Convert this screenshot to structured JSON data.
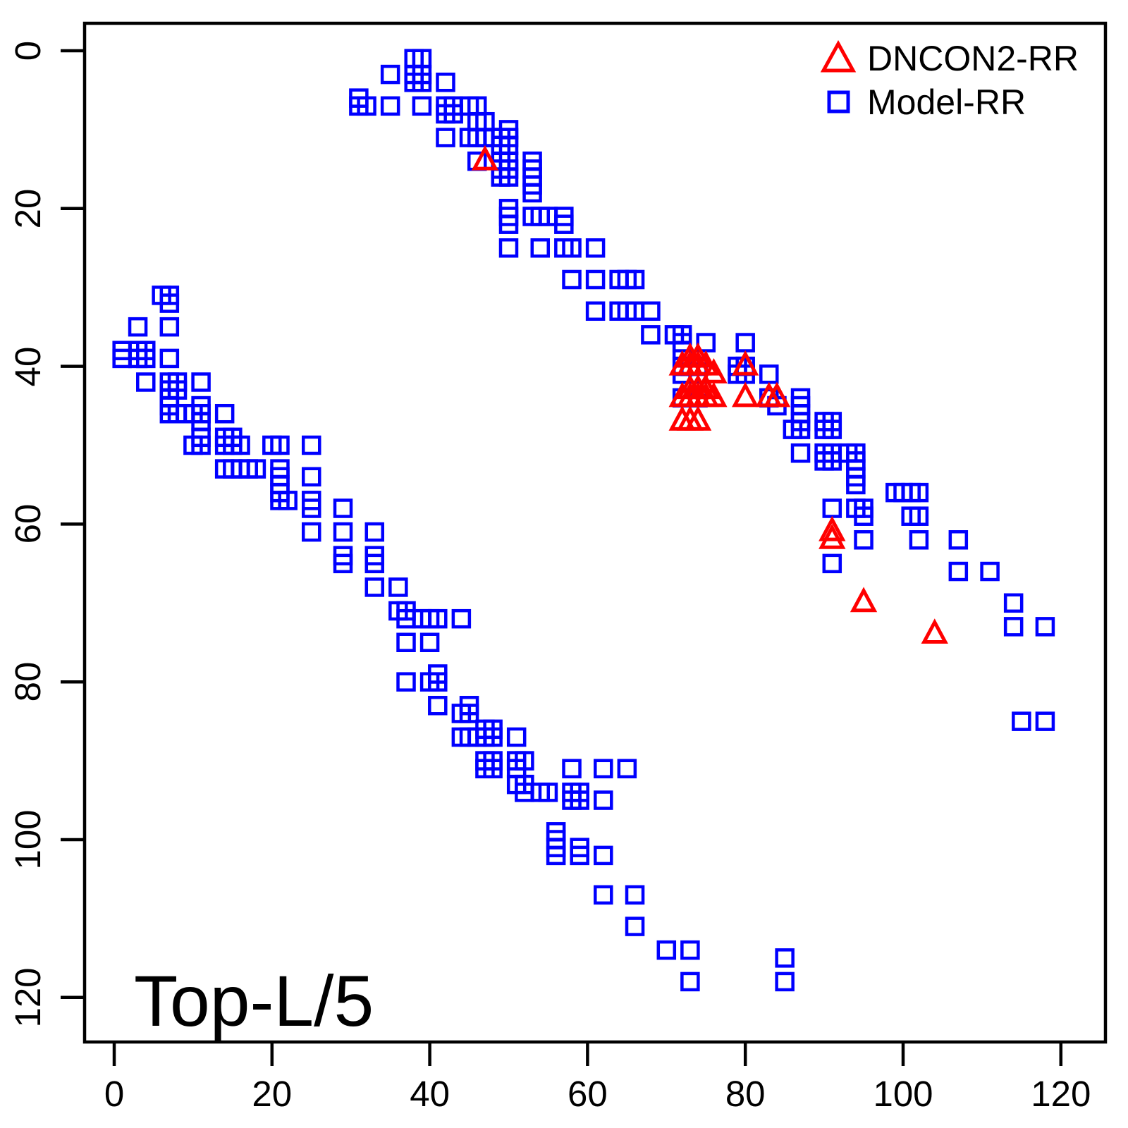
{
  "title": "Top-L/5",
  "legend": {
    "items": [
      {
        "label": "DNCON2-RR",
        "marker": "triangle",
        "color": "#FF0000"
      },
      {
        "label": "Model-RR",
        "marker": "square",
        "color": "#0000FF"
      }
    ]
  },
  "colors": {
    "dncon2": "#FF0000",
    "model": "#0000FF",
    "axis": "#000000",
    "background": "#FFFFFF"
  },
  "chart_data": {
    "type": "scatter",
    "title": "Top-L/5",
    "xlabel": "",
    "ylabel": "",
    "x_ticks": [
      0,
      20,
      40,
      60,
      80,
      100,
      120
    ],
    "y_ticks": [
      0,
      20,
      40,
      60,
      80,
      100,
      120
    ],
    "xlim": [
      -3.8,
      125.6
    ],
    "ylim": [
      -3.5,
      125.7
    ],
    "y_axis_inverted": true,
    "grid": false,
    "legend_position": "top-right",
    "series": [
      {
        "name": "Model-RR",
        "marker": "square",
        "color": "#0000FF",
        "points": [
          [
            38,
            1
          ],
          [
            39,
            1
          ],
          [
            35,
            3
          ],
          [
            38,
            3
          ],
          [
            39,
            3
          ],
          [
            38,
            4
          ],
          [
            39,
            4
          ],
          [
            42,
            4
          ],
          [
            31,
            6
          ],
          [
            31,
            7
          ],
          [
            32,
            7
          ],
          [
            35,
            7
          ],
          [
            39,
            7
          ],
          [
            42,
            7
          ],
          [
            43,
            7
          ],
          [
            45,
            7
          ],
          [
            46,
            7
          ],
          [
            42,
            8
          ],
          [
            43,
            8
          ],
          [
            46,
            9
          ],
          [
            47,
            9
          ],
          [
            50,
            10
          ],
          [
            42,
            11
          ],
          [
            45,
            11
          ],
          [
            46,
            11
          ],
          [
            47,
            11
          ],
          [
            48,
            11
          ],
          [
            49,
            11
          ],
          [
            50,
            11
          ],
          [
            49,
            12
          ],
          [
            50,
            12
          ],
          [
            46,
            14
          ],
          [
            49,
            14
          ],
          [
            50,
            14
          ],
          [
            49,
            15
          ],
          [
            50,
            15
          ],
          [
            49,
            16
          ],
          [
            50,
            16
          ],
          [
            53,
            14
          ],
          [
            53,
            15
          ],
          [
            53,
            16
          ],
          [
            53,
            17
          ],
          [
            53,
            18
          ],
          [
            50,
            20
          ],
          [
            50,
            21
          ],
          [
            50,
            22
          ],
          [
            53,
            21
          ],
          [
            54,
            21
          ],
          [
            55,
            21
          ],
          [
            57,
            21
          ],
          [
            57,
            22
          ],
          [
            50,
            25
          ],
          [
            54,
            25
          ],
          [
            57,
            25
          ],
          [
            58,
            25
          ],
          [
            61,
            25
          ],
          [
            58,
            29
          ],
          [
            61,
            29
          ],
          [
            64,
            29
          ],
          [
            65,
            29
          ],
          [
            66,
            29
          ],
          [
            61,
            33
          ],
          [
            64,
            33
          ],
          [
            65,
            33
          ],
          [
            66,
            33
          ],
          [
            68,
            33
          ],
          [
            68,
            36
          ],
          [
            71,
            36
          ],
          [
            72,
            36
          ],
          [
            72,
            37
          ],
          [
            72,
            38
          ],
          [
            75,
            37
          ],
          [
            80,
            37
          ],
          [
            72,
            40
          ],
          [
            73,
            40
          ],
          [
            74,
            40
          ],
          [
            72,
            41
          ],
          [
            74,
            41
          ],
          [
            79,
            40
          ],
          [
            80,
            40
          ],
          [
            79,
            41
          ],
          [
            80,
            41
          ],
          [
            83,
            41
          ],
          [
            72,
            44
          ],
          [
            74,
            44
          ],
          [
            83,
            44
          ],
          [
            84,
            45
          ],
          [
            87,
            44
          ],
          [
            87,
            45
          ],
          [
            87,
            46
          ],
          [
            87,
            47
          ],
          [
            87,
            48
          ],
          [
            86,
            48
          ],
          [
            90,
            47
          ],
          [
            91,
            47
          ],
          [
            90,
            48
          ],
          [
            91,
            48
          ],
          [
            87,
            51
          ],
          [
            90,
            51
          ],
          [
            91,
            51
          ],
          [
            90,
            52
          ],
          [
            91,
            52
          ],
          [
            93,
            51
          ],
          [
            94,
            51
          ],
          [
            94,
            52
          ],
          [
            94,
            53
          ],
          [
            94,
            54
          ],
          [
            94,
            55
          ],
          [
            99,
            56
          ],
          [
            100,
            56
          ],
          [
            101,
            56
          ],
          [
            102,
            56
          ],
          [
            91,
            58
          ],
          [
            94,
            58
          ],
          [
            95,
            58
          ],
          [
            95,
            59
          ],
          [
            101,
            59
          ],
          [
            102,
            59
          ],
          [
            91,
            65
          ],
          [
            95,
            62
          ],
          [
            102,
            62
          ],
          [
            107,
            62
          ],
          [
            107,
            66
          ],
          [
            111,
            66
          ],
          [
            114,
            70
          ],
          [
            114,
            73
          ],
          [
            118,
            73
          ],
          [
            115,
            85
          ],
          [
            118,
            85
          ],
          [
            85,
            115
          ],
          [
            85,
            118
          ],
          [
            6,
            31
          ],
          [
            7,
            31
          ],
          [
            7,
            32
          ],
          [
            3,
            35
          ],
          [
            7,
            35
          ],
          [
            1,
            38
          ],
          [
            1,
            39
          ],
          [
            3,
            38
          ],
          [
            3,
            39
          ],
          [
            4,
            38
          ],
          [
            4,
            39
          ],
          [
            7,
            39
          ],
          [
            4,
            42
          ],
          [
            7,
            42
          ],
          [
            8,
            42
          ],
          [
            7,
            43
          ],
          [
            8,
            43
          ],
          [
            7,
            44
          ],
          [
            7,
            45
          ],
          [
            7,
            46
          ],
          [
            11,
            42
          ],
          [
            8,
            46
          ],
          [
            9,
            46
          ],
          [
            10,
            46
          ],
          [
            11,
            45
          ],
          [
            11,
            46
          ],
          [
            11,
            47
          ],
          [
            14,
            46
          ],
          [
            11,
            49
          ],
          [
            10,
            50
          ],
          [
            11,
            50
          ],
          [
            14,
            49
          ],
          [
            15,
            49
          ],
          [
            14,
            50
          ],
          [
            15,
            50
          ],
          [
            16,
            50
          ],
          [
            20,
            50
          ],
          [
            21,
            50
          ],
          [
            25,
            50
          ],
          [
            14,
            53
          ],
          [
            15,
            53
          ],
          [
            16,
            53
          ],
          [
            17,
            53
          ],
          [
            18,
            53
          ],
          [
            21,
            53
          ],
          [
            21,
            54
          ],
          [
            21,
            55
          ],
          [
            21,
            56
          ],
          [
            21,
            57
          ],
          [
            22,
            57
          ],
          [
            25,
            54
          ],
          [
            25,
            57
          ],
          [
            25,
            58
          ],
          [
            29,
            58
          ],
          [
            25,
            61
          ],
          [
            29,
            61
          ],
          [
            33,
            61
          ],
          [
            29,
            64
          ],
          [
            29,
            65
          ],
          [
            33,
            64
          ],
          [
            33,
            65
          ],
          [
            33,
            68
          ],
          [
            36,
            68
          ],
          [
            36,
            71
          ],
          [
            37,
            71
          ],
          [
            37,
            72
          ],
          [
            39,
            72
          ],
          [
            40,
            72
          ],
          [
            41,
            72
          ],
          [
            44,
            72
          ],
          [
            37,
            75
          ],
          [
            40,
            75
          ],
          [
            37,
            80
          ],
          [
            41,
            79
          ],
          [
            40,
            80
          ],
          [
            41,
            80
          ],
          [
            41,
            83
          ],
          [
            45,
            83
          ],
          [
            44,
            84
          ],
          [
            45,
            84
          ],
          [
            44,
            87
          ],
          [
            45,
            87
          ],
          [
            46,
            87
          ],
          [
            47,
            86
          ],
          [
            48,
            86
          ],
          [
            47,
            87
          ],
          [
            48,
            87
          ],
          [
            51,
            87
          ],
          [
            47,
            90
          ],
          [
            48,
            90
          ],
          [
            47,
            91
          ],
          [
            48,
            91
          ],
          [
            51,
            90
          ],
          [
            52,
            90
          ],
          [
            51,
            91
          ],
          [
            51,
            93
          ],
          [
            52,
            93
          ],
          [
            52,
            94
          ],
          [
            54,
            94
          ],
          [
            55,
            94
          ],
          [
            58,
            91
          ],
          [
            62,
            91
          ],
          [
            65,
            91
          ],
          [
            58,
            94
          ],
          [
            59,
            94
          ],
          [
            58,
            95
          ],
          [
            59,
            95
          ],
          [
            62,
            95
          ],
          [
            56,
            99
          ],
          [
            56,
            100
          ],
          [
            56,
            101
          ],
          [
            56,
            102
          ],
          [
            59,
            101
          ],
          [
            59,
            102
          ],
          [
            62,
            102
          ],
          [
            62,
            107
          ],
          [
            66,
            107
          ],
          [
            66,
            111
          ],
          [
            70,
            114
          ],
          [
            73,
            114
          ],
          [
            73,
            118
          ]
        ]
      },
      {
        "name": "DNCON2-RR",
        "marker": "triangle",
        "color": "#FF0000",
        "points": [
          [
            47,
            14
          ],
          [
            73,
            39
          ],
          [
            74,
            39
          ],
          [
            72,
            40
          ],
          [
            73,
            40
          ],
          [
            74,
            40
          ],
          [
            75,
            40
          ],
          [
            76,
            41
          ],
          [
            80,
            40
          ],
          [
            73,
            43
          ],
          [
            74,
            43
          ],
          [
            75,
            43
          ],
          [
            72,
            44
          ],
          [
            73,
            44
          ],
          [
            74,
            44
          ],
          [
            75,
            44
          ],
          [
            76,
            44
          ],
          [
            80,
            44
          ],
          [
            83,
            44
          ],
          [
            84,
            44
          ],
          [
            72,
            47
          ],
          [
            73,
            47
          ],
          [
            74,
            47
          ],
          [
            91,
            61
          ],
          [
            91,
            62
          ],
          [
            95,
            70
          ],
          [
            104,
            74
          ]
        ]
      }
    ]
  }
}
